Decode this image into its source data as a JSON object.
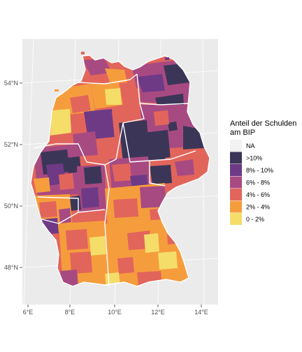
{
  "map": {
    "type": "choropleth",
    "region": "Germany (districts)",
    "x_ticks": [
      "6°E",
      "8°E",
      "10°E",
      "12°E",
      "14°E"
    ],
    "y_ticks": [
      "54°N",
      "52°N",
      "50°N",
      "48°N"
    ],
    "colors": {
      "panel_background": "#ebebeb",
      "grid": "#ffffff",
      "border": "#ffffff"
    }
  },
  "legend": {
    "title_line1": "Anteil der Schulden",
    "title_line2": "am BIP",
    "entries": [
      {
        "label": "NA",
        "color": "#f2f2f2"
      },
      {
        "label": ">10%",
        "color": "#3b3658"
      },
      {
        "label": "8% - 10%",
        "color": "#6e3a86"
      },
      {
        "label": "6% - 8%",
        "color": "#a84a82"
      },
      {
        "label": "4% - 6%",
        "color": "#e2655b"
      },
      {
        "label": "2% - 4%",
        "color": "#f59d3d"
      },
      {
        "label": "0 - 2%",
        "color": "#f5dd6a"
      }
    ]
  }
}
